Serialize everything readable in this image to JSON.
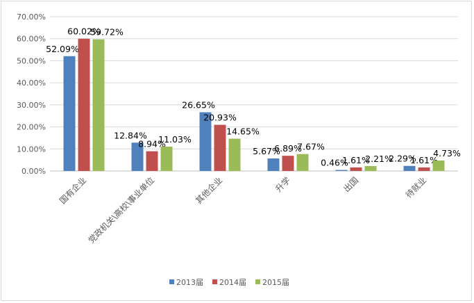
{
  "chart_data": {
    "type": "bar",
    "title": "",
    "xlabel": "",
    "ylabel": "",
    "ylim": [
      0,
      70
    ],
    "y_ticks": [
      "0.00%",
      "10.00%",
      "20.00%",
      "30.00%",
      "40.00%",
      "50.00%",
      "60.00%",
      "70.00%"
    ],
    "grid": true,
    "legend_position": "bottom",
    "categories": [
      "国有企业",
      "党政机关\\高校\\事业单位",
      "其他企业",
      "升学",
      "出国",
      "待就业"
    ],
    "series": [
      {
        "name": "2013届",
        "color": "#4f81bd",
        "values": [
          52.09,
          12.84,
          26.65,
          5.67,
          0.46,
          2.29
        ],
        "labels": [
          "52.09%",
          "12.84%",
          "26.65%",
          "5.67%",
          "0.46%",
          "2.29%"
        ]
      },
      {
        "name": "2014届",
        "color": "#c0504d",
        "values": [
          60.02,
          8.94,
          20.93,
          6.89,
          1.61,
          1.61
        ],
        "labels": [
          "60.02%",
          "8.94%",
          "20.93%",
          "6.89%",
          "1.61%",
          "1.61%"
        ]
      },
      {
        "name": "2015届",
        "color": "#9bbb59",
        "values": [
          59.72,
          11.03,
          14.65,
          7.67,
          2.21,
          4.73
        ],
        "labels": [
          "59.72%",
          "11.03%",
          "14.65%",
          "7.67%",
          "2.21%",
          "4.73%"
        ]
      }
    ]
  }
}
